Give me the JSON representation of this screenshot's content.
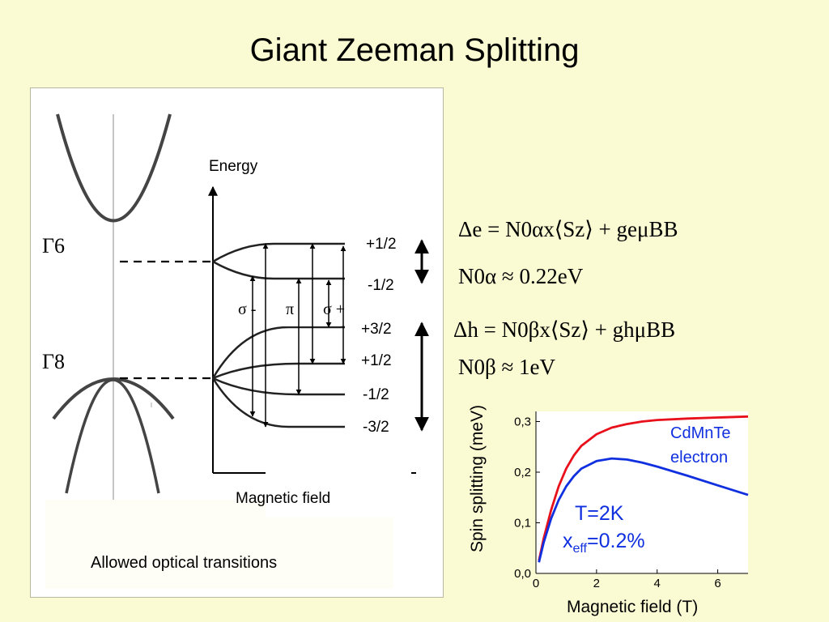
{
  "title": "Giant Zeeman Splitting",
  "band_diagram": {
    "gamma6": "Γ6",
    "gamma8": "Γ8",
    "energy_label": "Energy",
    "field_label": "Magnetic field",
    "conduction_levels": [
      "+1/2",
      "-1/2"
    ],
    "valence_levels": [
      "+3/2",
      "+1/2",
      "-1/2",
      "-3/2"
    ],
    "polarizations": [
      "σ -",
      "π",
      "σ +"
    ],
    "caption": "Allowed optical transitions"
  },
  "equations": {
    "delta_e": "Δe = N0αx⟨Sz⟩ + geμBB",
    "alpha_value": "N0α ≈ 0.22eV",
    "delta_h": "Δh = N0βx⟨Sz⟩ + ghμBB",
    "beta_value": "N0β ≈ 1eV"
  },
  "chart_data": {
    "type": "line",
    "xlabel": "Magnetic field (T)",
    "ylabel": "Spin splitting (meV)",
    "xlim": [
      0,
      7
    ],
    "ylim": [
      0,
      0.32
    ],
    "x_ticks": [
      "0",
      "2",
      "4",
      "6"
    ],
    "y_ticks": [
      "0,0",
      "0,1",
      "0,2",
      "0,3"
    ],
    "annotations": [
      "CdMnTe",
      "electron",
      "T=2K",
      "xeff=0.2%"
    ],
    "series": [
      {
        "color": "#e8101a",
        "x": [
          0.1,
          0.25,
          0.5,
          0.75,
          1.0,
          1.25,
          1.5,
          2.0,
          2.5,
          3.0,
          3.5,
          4.0,
          5.0,
          6.0,
          7.0
        ],
        "y": [
          0.025,
          0.068,
          0.125,
          0.172,
          0.207,
          0.233,
          0.252,
          0.275,
          0.288,
          0.295,
          0.3,
          0.303,
          0.306,
          0.308,
          0.31
        ]
      },
      {
        "color": "#1030e0",
        "x": [
          0.1,
          0.25,
          0.5,
          0.75,
          1.0,
          1.25,
          1.5,
          2.0,
          2.5,
          3.0,
          3.5,
          4.0,
          5.0,
          6.0,
          7.0
        ],
        "y": [
          0.022,
          0.06,
          0.108,
          0.145,
          0.172,
          0.192,
          0.207,
          0.222,
          0.227,
          0.225,
          0.219,
          0.211,
          0.193,
          0.174,
          0.155
        ]
      }
    ]
  }
}
